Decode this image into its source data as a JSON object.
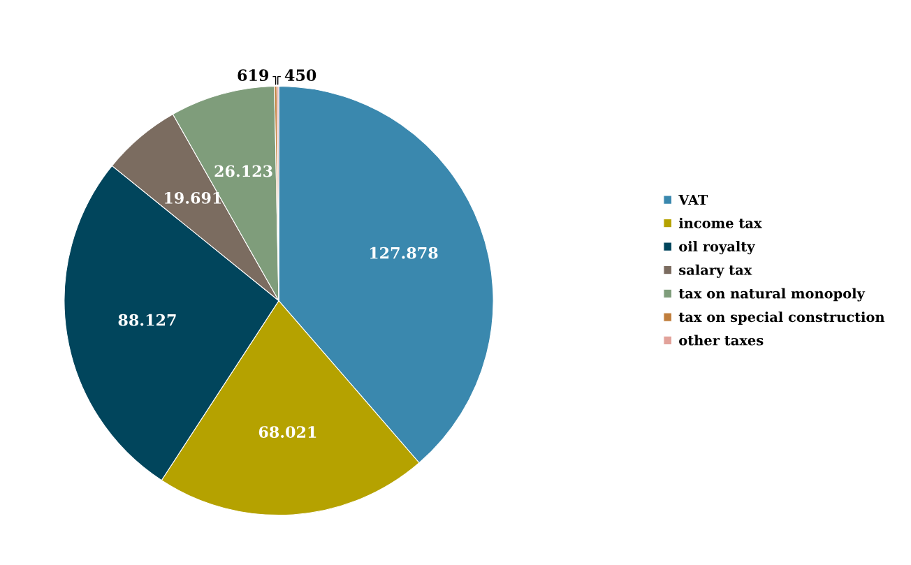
{
  "chart_data": {
    "type": "pie",
    "categories": [
      "VAT",
      "income tax",
      "oil royalty",
      "salary tax",
      "tax on natural monopoly",
      "tax on special construction",
      "other taxes"
    ],
    "values": [
      127878,
      68021,
      88127,
      19691,
      26123,
      619,
      450
    ],
    "value_labels": [
      "127.878",
      "68.021",
      "88.127",
      "19.691",
      "26.123",
      "619",
      "450"
    ],
    "colors": [
      "#3a88ae",
      "#b5a200",
      "#01455c",
      "#7b6c60",
      "#7f9d7b",
      "#c07e3c",
      "#e2a29a"
    ],
    "legend": "right"
  }
}
